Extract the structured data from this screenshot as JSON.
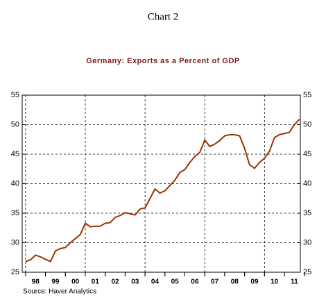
{
  "chart_data": {
    "type": "line",
    "header": "Chart 2",
    "title": "Germany:  Exports as a Percent of GDP",
    "source": "Source:  Haver Analytics",
    "x": [
      1998,
      1998.25,
      1998.5,
      1998.75,
      1999,
      1999.25,
      1999.5,
      1999.75,
      2000,
      2000.25,
      2000.5,
      2000.75,
      2001,
      2001.25,
      2001.5,
      2001.75,
      2002,
      2002.25,
      2002.5,
      2002.75,
      2003,
      2003.25,
      2003.5,
      2003.75,
      2004,
      2004.25,
      2004.5,
      2004.75,
      2005,
      2005.25,
      2005.5,
      2005.75,
      2006,
      2006.25,
      2006.5,
      2006.75,
      2007,
      2007.25,
      2007.5,
      2007.75,
      2008,
      2008.25,
      2008.5,
      2008.75,
      2009,
      2009.25,
      2009.5,
      2009.75,
      2010,
      2010.25,
      2010.5,
      2010.75,
      2011,
      2011.25,
      2011.5,
      2011.75
    ],
    "series": [
      {
        "name": "Exports as a Percent of GDP",
        "color": "#993300",
        "values": [
          26.8,
          27.1,
          27.9,
          27.6,
          27.2,
          26.8,
          28.6,
          29.0,
          29.2,
          30.0,
          30.7,
          31.4,
          33.3,
          32.7,
          32.8,
          32.8,
          33.3,
          33.4,
          34.3,
          34.6,
          35.1,
          34.9,
          34.7,
          35.7,
          35.9,
          37.5,
          39.1,
          38.4,
          38.8,
          39.7,
          40.6,
          41.9,
          42.4,
          43.6,
          44.6,
          45.3,
          47.4,
          46.3,
          46.7,
          47.3,
          48.1,
          48.3,
          48.3,
          48.1,
          46.0,
          43.2,
          42.6,
          43.6,
          44.3,
          45.5,
          47.8,
          48.3,
          48.5,
          48.7,
          50.0,
          50.9
        ]
      }
    ],
    "xlim": [
      1997.83,
      2011.8
    ],
    "xticks": [
      {
        "value": 1998.5,
        "label": "98"
      },
      {
        "value": 1999.5,
        "label": "99"
      },
      {
        "value": 2000.5,
        "label": "00"
      },
      {
        "value": 2001.5,
        "label": "01"
      },
      {
        "value": 2002.5,
        "label": "02"
      },
      {
        "value": 2003.5,
        "label": "03"
      },
      {
        "value": 2004.5,
        "label": "04"
      },
      {
        "value": 2005.5,
        "label": "05"
      },
      {
        "value": 2006.5,
        "label": "06"
      },
      {
        "value": 2007.5,
        "label": "07"
      },
      {
        "value": 2008.5,
        "label": "08"
      },
      {
        "value": 2009.5,
        "label": "09"
      },
      {
        "value": 2010.5,
        "label": "10"
      },
      {
        "value": 2011.5,
        "label": "11"
      }
    ],
    "xgrid": [
      1998,
      2001,
      2004,
      2007,
      2010
    ],
    "ylim": [
      25,
      55
    ],
    "yticks": [
      25,
      30,
      35,
      40,
      45,
      50,
      55
    ],
    "grid": true
  }
}
